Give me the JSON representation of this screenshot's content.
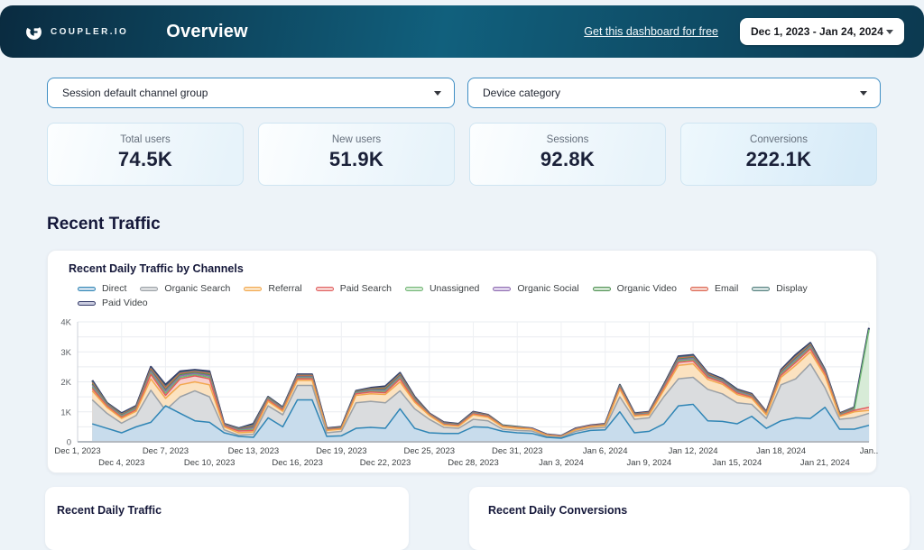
{
  "header": {
    "logo_text": "COUPLER.IO",
    "title": "Overview",
    "link_label": "Get this dashboard for free",
    "date_range": "Dec 1, 2023 - Jan 24, 2024"
  },
  "filters": [
    {
      "label": "Session default channel group"
    },
    {
      "label": "Device category"
    }
  ],
  "kpis": [
    {
      "label": "Total users",
      "value": "74.5K"
    },
    {
      "label": "New users",
      "value": "51.9K"
    },
    {
      "label": "Sessions",
      "value": "92.8K"
    },
    {
      "label": "Conversions",
      "value": "222.1K"
    }
  ],
  "section_title": "Recent Traffic",
  "bottom_cards": [
    {
      "title": "Recent Daily Traffic"
    },
    {
      "title": "Recent Daily Conversions"
    }
  ],
  "chart_data": {
    "type": "area",
    "title": "Recent Daily Traffic by Channels",
    "stacked": false,
    "unit": "sessions per day, values in thousands (K)",
    "x_range_days": 54,
    "first_data_day": 1,
    "x_start_label": "Dec 1, 2023",
    "x_end_label": "Jan 24, 2024",
    "ylim_k": [
      0,
      4
    ],
    "ytick_minor_step_k": 0.5,
    "yticks": [
      {
        "v": 0,
        "label": "0"
      },
      {
        "v": 1,
        "label": "1K"
      },
      {
        "v": 2,
        "label": "2K"
      },
      {
        "v": 3,
        "label": "3K"
      },
      {
        "v": 4,
        "label": "4K"
      }
    ],
    "x_ticks": [
      {
        "day": 0,
        "label": "Dec 1, 2023",
        "row": 0
      },
      {
        "day": 3,
        "label": "Dec 4, 2023",
        "row": 1
      },
      {
        "day": 6,
        "label": "Dec 7, 2023",
        "row": 0
      },
      {
        "day": 9,
        "label": "Dec 10, 2023",
        "row": 1
      },
      {
        "day": 12,
        "label": "Dec 13, 2023",
        "row": 0
      },
      {
        "day": 15,
        "label": "Dec 16, 2023",
        "row": 1
      },
      {
        "day": 18,
        "label": "Dec 19, 2023",
        "row": 0
      },
      {
        "day": 21,
        "label": "Dec 22, 2023",
        "row": 1
      },
      {
        "day": 24,
        "label": "Dec 25, 2023",
        "row": 0
      },
      {
        "day": 27,
        "label": "Dec 28, 2023",
        "row": 1
      },
      {
        "day": 30,
        "label": "Dec 31, 2023",
        "row": 0
      },
      {
        "day": 33,
        "label": "Jan 3, 2024",
        "row": 1
      },
      {
        "day": 36,
        "label": "Jan 6, 2024",
        "row": 0
      },
      {
        "day": 39,
        "label": "Jan 9, 2024",
        "row": 1
      },
      {
        "day": 42,
        "label": "Jan 12, 2024",
        "row": 0
      },
      {
        "day": 45,
        "label": "Jan 15, 2024",
        "row": 1
      },
      {
        "day": 48,
        "label": "Jan 18, 2024",
        "row": 0
      },
      {
        "day": 51,
        "label": "Jan 21, 2024",
        "row": 1
      },
      {
        "day": 54,
        "label": "Jan..",
        "row": 0
      }
    ],
    "series": [
      {
        "name": "Direct",
        "color": "#2f85b5",
        "fill": "#c8dcec",
        "values": [
          0.6,
          0.45,
          0.3,
          0.5,
          0.65,
          1.2,
          0.95,
          0.7,
          0.65,
          0.3,
          0.18,
          0.15,
          0.8,
          0.5,
          1.4,
          1.4,
          0.18,
          0.2,
          0.45,
          0.48,
          0.45,
          1.1,
          0.45,
          0.3,
          0.28,
          0.28,
          0.5,
          0.48,
          0.35,
          0.3,
          0.28,
          0.15,
          0.12,
          0.28,
          0.38,
          0.4,
          1.0,
          0.3,
          0.35,
          0.6,
          1.2,
          1.25,
          0.7,
          0.68,
          0.6,
          0.85,
          0.45,
          0.7,
          0.8,
          0.78,
          1.15,
          0.42,
          0.42,
          0.55
        ]
      },
      {
        "name": "Organic Search",
        "color": "#9aa0a6",
        "fill": "#dadcde",
        "values": [
          1.4,
          0.95,
          0.62,
          0.88,
          1.72,
          1.05,
          1.5,
          1.7,
          1.5,
          0.4,
          0.22,
          0.25,
          1.2,
          0.9,
          1.88,
          1.88,
          0.3,
          0.35,
          1.3,
          1.35,
          1.3,
          1.7,
          1.1,
          0.75,
          0.48,
          0.45,
          0.75,
          0.7,
          0.42,
          0.38,
          0.36,
          0.18,
          0.15,
          0.35,
          0.45,
          0.48,
          1.5,
          0.75,
          0.8,
          1.5,
          2.1,
          2.15,
          1.75,
          1.6,
          1.3,
          1.25,
          0.78,
          1.9,
          2.1,
          2.6,
          1.8,
          0.75,
          0.8,
          0.95
        ]
      },
      {
        "name": "Referral",
        "color": "#f2a74b",
        "fill": "#fbe2c0",
        "values": [
          1.7,
          1.15,
          0.78,
          1.02,
          2.1,
          1.45,
          1.9,
          2.0,
          1.9,
          0.5,
          0.3,
          0.33,
          1.35,
          1.02,
          2.05,
          2.05,
          0.38,
          0.42,
          1.55,
          1.6,
          1.58,
          2.0,
          1.32,
          0.88,
          0.56,
          0.52,
          0.9,
          0.82,
          0.5,
          0.45,
          0.42,
          0.22,
          0.17,
          0.4,
          0.5,
          0.54,
          1.75,
          0.86,
          0.9,
          1.72,
          2.55,
          2.6,
          2.08,
          1.92,
          1.58,
          1.45,
          0.9,
          2.15,
          2.55,
          3.0,
          2.2,
          0.85,
          1.0,
          1.05
        ]
      },
      {
        "name": "Paid Search",
        "color": "#e05c5c",
        "fill": "#f7cfcc",
        "values": [
          1.78,
          1.2,
          0.82,
          1.07,
          2.25,
          1.55,
          2.1,
          2.2,
          2.1,
          0.53,
          0.36,
          0.38,
          1.4,
          1.06,
          2.1,
          2.1,
          0.4,
          0.44,
          1.6,
          1.66,
          1.64,
          2.1,
          1.37,
          0.9,
          0.58,
          0.54,
          0.93,
          0.85,
          0.52,
          0.47,
          0.43,
          0.23,
          0.18,
          0.41,
          0.51,
          0.55,
          1.8,
          0.88,
          0.92,
          1.78,
          2.65,
          2.7,
          2.15,
          1.98,
          1.63,
          1.49,
          0.92,
          2.22,
          2.65,
          3.1,
          2.28,
          0.87,
          1.05,
          1.15
        ]
      },
      {
        "name": "Unassigned",
        "color": "#6fb573",
        "fill": "#d7ebd7",
        "values": [
          1.83,
          1.22,
          0.85,
          1.1,
          2.3,
          1.62,
          2.15,
          2.24,
          2.15,
          0.54,
          0.38,
          0.42,
          1.42,
          1.08,
          2.13,
          2.13,
          0.41,
          0.45,
          1.62,
          1.69,
          1.68,
          2.14,
          1.4,
          0.91,
          0.59,
          0.55,
          0.94,
          0.86,
          0.53,
          0.48,
          0.43,
          0.23,
          0.18,
          0.42,
          0.52,
          0.56,
          1.82,
          0.89,
          0.94,
          1.8,
          2.69,
          2.74,
          2.18,
          2.0,
          1.65,
          1.51,
          0.94,
          2.26,
          2.7,
          3.14,
          2.3,
          0.89,
          1.07,
          3.75
        ]
      },
      {
        "name": "Organic Social",
        "color": "#8e6bb1",
        "fill": "#ded2ec",
        "values": [
          1.89,
          1.24,
          0.87,
          1.12,
          2.35,
          1.69,
          2.2,
          2.28,
          2.2,
          0.56,
          0.4,
          0.47,
          1.44,
          1.1,
          2.16,
          2.16,
          0.42,
          0.46,
          1.64,
          1.72,
          1.72,
          2.18,
          1.42,
          0.92,
          0.61,
          0.56,
          0.96,
          0.87,
          0.53,
          0.48,
          0.44,
          0.24,
          0.19,
          0.43,
          0.53,
          0.57,
          1.84,
          0.91,
          0.95,
          1.83,
          2.73,
          2.78,
          2.21,
          2.03,
          1.68,
          1.53,
          0.95,
          2.29,
          2.75,
          3.18,
          2.33,
          0.9,
          1.09,
          1.3
        ]
      },
      {
        "name": "Organic Video",
        "color": "#4f9153",
        "fill": "#cfe4cf",
        "values": [
          1.93,
          1.26,
          0.89,
          1.14,
          2.39,
          1.74,
          2.24,
          2.31,
          2.24,
          0.57,
          0.41,
          0.5,
          1.46,
          1.11,
          2.18,
          2.18,
          0.43,
          0.47,
          1.66,
          1.74,
          1.76,
          2.21,
          1.44,
          0.93,
          0.62,
          0.57,
          0.97,
          0.88,
          0.54,
          0.49,
          0.44,
          0.24,
          0.19,
          0.43,
          0.53,
          0.58,
          1.86,
          0.92,
          0.96,
          1.85,
          2.76,
          2.81,
          2.23,
          2.05,
          1.7,
          1.55,
          0.96,
          2.32,
          2.79,
          3.21,
          2.35,
          0.91,
          1.11,
          1.28
        ]
      },
      {
        "name": "Email",
        "color": "#dc6450",
        "fill": "#f5cec5",
        "values": [
          1.97,
          1.27,
          0.91,
          1.16,
          2.43,
          1.8,
          2.28,
          2.34,
          2.28,
          0.58,
          0.42,
          0.53,
          1.47,
          1.12,
          2.21,
          2.21,
          0.44,
          0.48,
          1.67,
          1.76,
          1.79,
          2.24,
          1.46,
          0.94,
          0.63,
          0.58,
          0.98,
          0.89,
          0.54,
          0.49,
          0.44,
          0.24,
          0.19,
          0.44,
          0.54,
          0.59,
          1.87,
          0.93,
          0.98,
          1.86,
          2.79,
          2.84,
          2.26,
          2.06,
          1.71,
          1.57,
          0.98,
          2.35,
          2.83,
          3.24,
          2.36,
          0.93,
          1.12,
          1.22
        ]
      },
      {
        "name": "Display",
        "color": "#527e7c",
        "fill": "#d0dfde",
        "values": [
          2.01,
          1.29,
          0.93,
          1.18,
          2.46,
          1.85,
          2.31,
          2.37,
          2.31,
          0.59,
          0.44,
          0.57,
          1.49,
          1.14,
          2.23,
          2.23,
          0.44,
          0.49,
          1.69,
          1.78,
          1.82,
          2.27,
          1.48,
          0.94,
          0.64,
          0.59,
          0.99,
          0.89,
          0.55,
          0.5,
          0.45,
          0.25,
          0.2,
          0.44,
          0.54,
          0.59,
          1.89,
          0.94,
          0.99,
          1.88,
          2.82,
          2.87,
          2.28,
          2.08,
          1.73,
          1.58,
          0.99,
          2.37,
          2.86,
          3.27,
          2.38,
          0.94,
          1.14,
          1.2
        ]
      },
      {
        "name": "Paid Video",
        "color": "#333a68",
        "fill": "#caccdf",
        "values": [
          2.05,
          1.3,
          0.95,
          1.2,
          2.5,
          1.9,
          2.35,
          2.4,
          2.35,
          0.6,
          0.45,
          0.6,
          1.5,
          1.15,
          2.25,
          2.25,
          0.45,
          0.5,
          1.7,
          1.8,
          1.85,
          2.3,
          1.5,
          0.95,
          0.65,
          0.6,
          1.0,
          0.9,
          0.55,
          0.5,
          0.45,
          0.25,
          0.2,
          0.45,
          0.55,
          0.6,
          1.9,
          0.95,
          1.0,
          1.9,
          2.85,
          2.9,
          2.3,
          2.1,
          1.75,
          1.6,
          1.0,
          2.4,
          2.9,
          3.3,
          2.4,
          0.95,
          1.15,
          3.8
        ]
      }
    ]
  }
}
